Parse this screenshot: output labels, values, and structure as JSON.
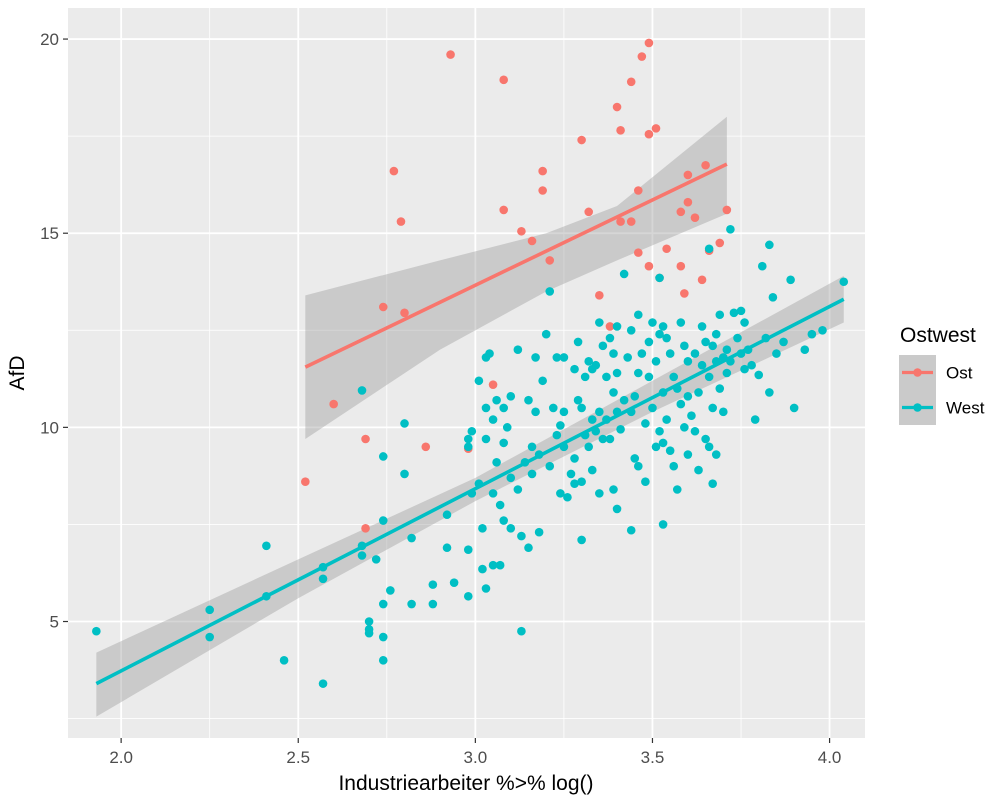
{
  "chart_data": {
    "type": "scatter",
    "xlabel": "Industriearbeiter %>% log()",
    "ylabel": "AfD",
    "xlim": [
      1.85,
      4.1
    ],
    "ylim": [
      2.0,
      20.8
    ],
    "x_ticks": [
      2.0,
      2.5,
      3.0,
      3.5,
      4.0
    ],
    "x_tick_labels": [
      "2.0",
      "2.5",
      "3.0",
      "3.5",
      "4.0"
    ],
    "y_ticks": [
      5,
      10,
      15,
      20
    ],
    "y_tick_labels": [
      "5",
      "10",
      "15",
      "20"
    ],
    "grid": true,
    "legend": {
      "title": "Ostwest",
      "placement": "right"
    },
    "series": [
      {
        "name": "Ost",
        "color": "#F8766D",
        "fit": {
          "x": [
            2.52,
            3.71
          ],
          "y": [
            11.55,
            16.78
          ]
        },
        "ci": {
          "x": [
            2.52,
            2.9,
            3.2,
            3.4,
            3.71
          ],
          "lower": [
            9.7,
            12.0,
            13.5,
            14.3,
            15.5
          ],
          "upper": [
            13.4,
            14.3,
            15.0,
            15.7,
            18.0
          ]
        },
        "points": [
          [
            2.52,
            8.6
          ],
          [
            2.6,
            10.6
          ],
          [
            2.69,
            9.7
          ],
          [
            2.69,
            7.4
          ],
          [
            2.74,
            13.1
          ],
          [
            2.77,
            16.6
          ],
          [
            2.79,
            15.3
          ],
          [
            2.8,
            12.95
          ],
          [
            2.86,
            9.5
          ],
          [
            2.93,
            19.6
          ],
          [
            2.98,
            9.45
          ],
          [
            3.05,
            11.1
          ],
          [
            3.08,
            18.95
          ],
          [
            3.08,
            15.6
          ],
          [
            3.13,
            15.05
          ],
          [
            3.16,
            14.8
          ],
          [
            3.19,
            16.6
          ],
          [
            3.19,
            16.1
          ],
          [
            3.21,
            14.3
          ],
          [
            3.3,
            17.4
          ],
          [
            3.32,
            15.55
          ],
          [
            3.35,
            13.4
          ],
          [
            3.38,
            12.6
          ],
          [
            3.4,
            18.25
          ],
          [
            3.41,
            17.65
          ],
          [
            3.41,
            15.3
          ],
          [
            3.44,
            18.9
          ],
          [
            3.44,
            15.3
          ],
          [
            3.46,
            16.1
          ],
          [
            3.46,
            14.5
          ],
          [
            3.47,
            19.55
          ],
          [
            3.49,
            19.9
          ],
          [
            3.49,
            17.55
          ],
          [
            3.49,
            14.15
          ],
          [
            3.51,
            17.7
          ],
          [
            3.52,
            13.85
          ],
          [
            3.54,
            14.6
          ],
          [
            3.58,
            15.55
          ],
          [
            3.58,
            14.15
          ],
          [
            3.59,
            13.45
          ],
          [
            3.6,
            16.5
          ],
          [
            3.6,
            15.8
          ],
          [
            3.62,
            15.4
          ],
          [
            3.64,
            13.8
          ],
          [
            3.65,
            16.75
          ],
          [
            3.66,
            14.55
          ],
          [
            3.69,
            14.75
          ],
          [
            3.71,
            15.6
          ]
        ]
      },
      {
        "name": "West",
        "color": "#00BFC4",
        "fit": {
          "x": [
            1.93,
            4.04
          ],
          "y": [
            3.4,
            13.3
          ]
        },
        "ci": {
          "x": [
            1.93,
            2.5,
            3.0,
            3.5,
            4.04
          ],
          "lower": [
            2.55,
            5.6,
            8.1,
            10.4,
            12.7
          ],
          "upper": [
            4.2,
            6.6,
            8.7,
            11.2,
            13.9
          ]
        },
        "points": [
          [
            1.93,
            4.75
          ],
          [
            2.25,
            5.3
          ],
          [
            2.25,
            4.6
          ],
          [
            2.41,
            6.95
          ],
          [
            2.41,
            5.65
          ],
          [
            2.46,
            4.0
          ],
          [
            2.57,
            6.4
          ],
          [
            2.57,
            6.1
          ],
          [
            2.57,
            3.4
          ],
          [
            2.68,
            10.95
          ],
          [
            2.68,
            6.95
          ],
          [
            2.68,
            6.7
          ],
          [
            2.7,
            5.0
          ],
          [
            2.7,
            4.8
          ],
          [
            2.7,
            4.7
          ],
          [
            2.72,
            6.6
          ],
          [
            2.74,
            9.25
          ],
          [
            2.74,
            7.6
          ],
          [
            2.74,
            5.45
          ],
          [
            2.74,
            4.6
          ],
          [
            2.74,
            4.0
          ],
          [
            2.76,
            5.8
          ],
          [
            2.8,
            10.1
          ],
          [
            2.8,
            8.8
          ],
          [
            2.82,
            7.15
          ],
          [
            2.82,
            5.45
          ],
          [
            2.88,
            5.95
          ],
          [
            2.88,
            5.45
          ],
          [
            2.92,
            7.75
          ],
          [
            2.92,
            6.9
          ],
          [
            2.94,
            6.0
          ],
          [
            2.98,
            9.7
          ],
          [
            2.98,
            9.5
          ],
          [
            2.98,
            6.85
          ],
          [
            2.98,
            5.65
          ],
          [
            2.99,
            9.9
          ],
          [
            2.99,
            8.3
          ],
          [
            3.01,
            11.2
          ],
          [
            3.01,
            8.55
          ],
          [
            3.02,
            7.4
          ],
          [
            3.02,
            6.35
          ],
          [
            3.03,
            11.8
          ],
          [
            3.03,
            10.5
          ],
          [
            3.03,
            9.7
          ],
          [
            3.03,
            5.85
          ],
          [
            3.04,
            11.9
          ],
          [
            3.05,
            10.2
          ],
          [
            3.05,
            8.3
          ],
          [
            3.05,
            6.45
          ],
          [
            3.06,
            10.7
          ],
          [
            3.06,
            9.1
          ],
          [
            3.07,
            8.0
          ],
          [
            3.07,
            6.45
          ],
          [
            3.08,
            10.5
          ],
          [
            3.08,
            9.6
          ],
          [
            3.08,
            7.6
          ],
          [
            3.09,
            10.0
          ],
          [
            3.1,
            8.7
          ],
          [
            3.1,
            7.4
          ],
          [
            3.1,
            10.8
          ],
          [
            3.12,
            12.0
          ],
          [
            3.12,
            8.4
          ],
          [
            3.13,
            7.2
          ],
          [
            3.13,
            4.75
          ],
          [
            3.14,
            9.1
          ],
          [
            3.15,
            10.7
          ],
          [
            3.15,
            6.9
          ],
          [
            3.16,
            9.5
          ],
          [
            3.16,
            8.8
          ],
          [
            3.17,
            11.8
          ],
          [
            3.17,
            10.4
          ],
          [
            3.18,
            9.3
          ],
          [
            3.18,
            7.3
          ],
          [
            3.19,
            11.2
          ],
          [
            3.2,
            12.4
          ],
          [
            3.21,
            13.5
          ],
          [
            3.21,
            9.0
          ],
          [
            3.22,
            10.5
          ],
          [
            3.23,
            11.8
          ],
          [
            3.23,
            9.8
          ],
          [
            3.24,
            10.05
          ],
          [
            3.24,
            8.3
          ],
          [
            3.25,
            11.8
          ],
          [
            3.25,
            10.4
          ],
          [
            3.25,
            9.5
          ],
          [
            3.26,
            8.2
          ],
          [
            3.27,
            8.8
          ],
          [
            3.28,
            11.5
          ],
          [
            3.28,
            9.2
          ],
          [
            3.28,
            8.55
          ],
          [
            3.29,
            12.2
          ],
          [
            3.29,
            10.7
          ],
          [
            3.3,
            10.5
          ],
          [
            3.3,
            8.6
          ],
          [
            3.3,
            7.1
          ],
          [
            3.31,
            11.3
          ],
          [
            3.31,
            9.8
          ],
          [
            3.32,
            11.7
          ],
          [
            3.32,
            9.5
          ],
          [
            3.33,
            11.5
          ],
          [
            3.33,
            10.2
          ],
          [
            3.33,
            8.9
          ],
          [
            3.34,
            11.6
          ],
          [
            3.34,
            9.9
          ],
          [
            3.35,
            12.7
          ],
          [
            3.35,
            10.4
          ],
          [
            3.35,
            8.3
          ],
          [
            3.36,
            12.1
          ],
          [
            3.36,
            9.7
          ],
          [
            3.37,
            11.3
          ],
          [
            3.37,
            10.2
          ],
          [
            3.38,
            12.3
          ],
          [
            3.38,
            9.7
          ],
          [
            3.39,
            11.9
          ],
          [
            3.39,
            10.9
          ],
          [
            3.39,
            8.4
          ],
          [
            3.4,
            12.6
          ],
          [
            3.4,
            11.4
          ],
          [
            3.4,
            10.4
          ],
          [
            3.4,
            7.9
          ],
          [
            3.41,
            9.95
          ],
          [
            3.42,
            13.95
          ],
          [
            3.42,
            10.7
          ],
          [
            3.43,
            11.8
          ],
          [
            3.44,
            12.5
          ],
          [
            3.44,
            10.4
          ],
          [
            3.44,
            7.35
          ],
          [
            3.45,
            10.8
          ],
          [
            3.45,
            9.2
          ],
          [
            3.46,
            12.9
          ],
          [
            3.46,
            11.4
          ],
          [
            3.46,
            9.0
          ],
          [
            3.47,
            11.9
          ],
          [
            3.48,
            10.1
          ],
          [
            3.48,
            8.6
          ],
          [
            3.49,
            12.2
          ],
          [
            3.49,
            11.3
          ],
          [
            3.5,
            12.7
          ],
          [
            3.5,
            10.5
          ],
          [
            3.51,
            11.7
          ],
          [
            3.51,
            9.5
          ],
          [
            3.52,
            12.4
          ],
          [
            3.52,
            9.9
          ],
          [
            3.52,
            13.85
          ],
          [
            3.53,
            12.6
          ],
          [
            3.53,
            10.9
          ],
          [
            3.53,
            9.6
          ],
          [
            3.53,
            7.5
          ],
          [
            3.54,
            12.3
          ],
          [
            3.54,
            10.2
          ],
          [
            3.55,
            11.9
          ],
          [
            3.55,
            9.4
          ],
          [
            3.56,
            11.3
          ],
          [
            3.56,
            9.0
          ],
          [
            3.57,
            11.0
          ],
          [
            3.57,
            8.4
          ],
          [
            3.58,
            12.7
          ],
          [
            3.58,
            10.6
          ],
          [
            3.59,
            12.1
          ],
          [
            3.59,
            10.0
          ],
          [
            3.6,
            11.7
          ],
          [
            3.6,
            10.8
          ],
          [
            3.6,
            9.3
          ],
          [
            3.61,
            10.3
          ],
          [
            3.62,
            11.9
          ],
          [
            3.62,
            9.9
          ],
          [
            3.63,
            10.9
          ],
          [
            3.63,
            8.9
          ],
          [
            3.64,
            12.6
          ],
          [
            3.64,
            11.6
          ],
          [
            3.65,
            12.2
          ],
          [
            3.65,
            9.7
          ],
          [
            3.66,
            14.6
          ],
          [
            3.66,
            11.3
          ],
          [
            3.66,
            9.5
          ],
          [
            3.67,
            12.1
          ],
          [
            3.67,
            10.5
          ],
          [
            3.67,
            8.55
          ],
          [
            3.68,
            12.4
          ],
          [
            3.68,
            11.7
          ],
          [
            3.68,
            9.3
          ],
          [
            3.69,
            12.9
          ],
          [
            3.69,
            11.0
          ],
          [
            3.7,
            11.8
          ],
          [
            3.7,
            10.4
          ],
          [
            3.71,
            11.4
          ],
          [
            3.71,
            12.0
          ],
          [
            3.72,
            15.1
          ],
          [
            3.72,
            11.7
          ],
          [
            3.73,
            12.95
          ],
          [
            3.74,
            12.3
          ],
          [
            3.75,
            13.0
          ],
          [
            3.75,
            11.9
          ],
          [
            3.76,
            12.7
          ],
          [
            3.76,
            11.5
          ],
          [
            3.77,
            12.0
          ],
          [
            3.78,
            11.6
          ],
          [
            3.79,
            10.2
          ],
          [
            3.8,
            11.35
          ],
          [
            3.81,
            14.15
          ],
          [
            3.82,
            12.3
          ],
          [
            3.83,
            14.7
          ],
          [
            3.83,
            10.9
          ],
          [
            3.84,
            13.35
          ],
          [
            3.85,
            11.9
          ],
          [
            3.87,
            12.2
          ],
          [
            3.89,
            13.8
          ],
          [
            3.9,
            10.5
          ],
          [
            3.93,
            12.0
          ],
          [
            3.95,
            12.4
          ],
          [
            3.98,
            12.5
          ],
          [
            4.04,
            13.75
          ]
        ]
      }
    ]
  }
}
